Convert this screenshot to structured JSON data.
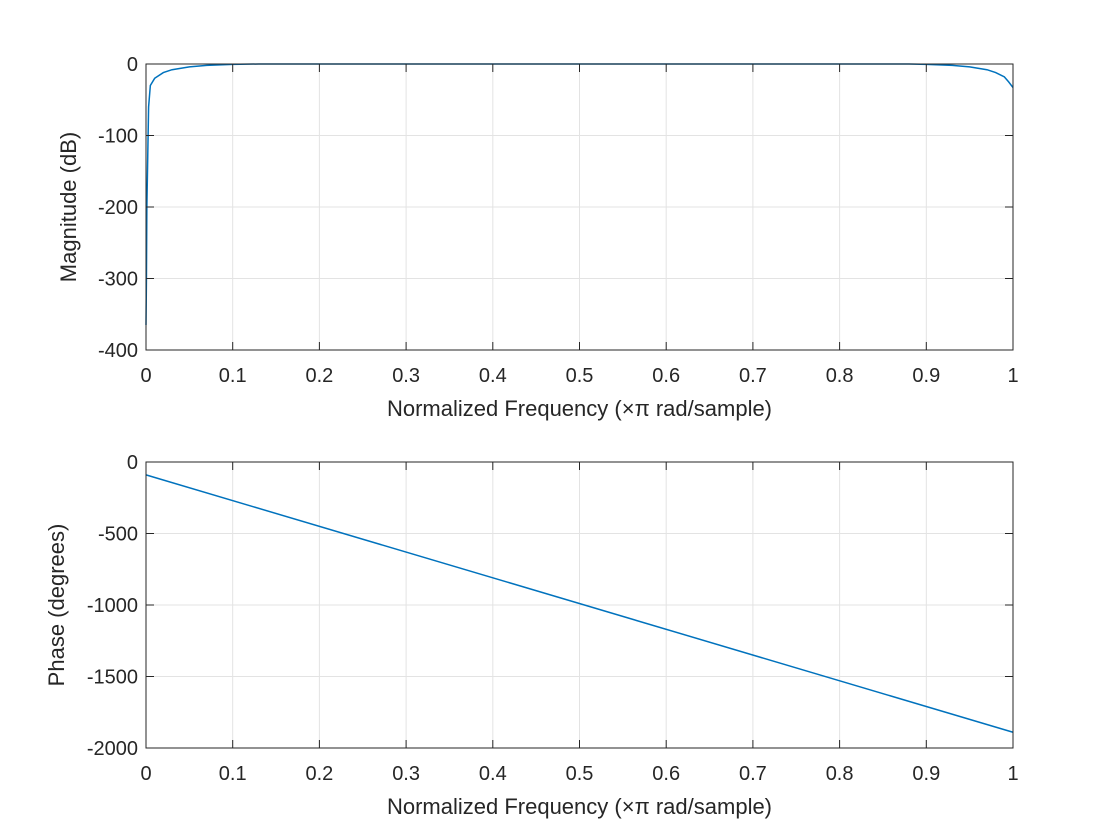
{
  "colors": {
    "series": "#0072bd",
    "axis": "#262626",
    "grid": "#e3e3e3",
    "background": "#ffffff"
  },
  "chart_data": [
    {
      "type": "line",
      "title": "",
      "xlabel": "Normalized Frequency  (×π rad/sample)",
      "ylabel": "Magnitude (dB)",
      "xlim": [
        0,
        1
      ],
      "ylim": [
        -400,
        0
      ],
      "grid": true,
      "xticks": [
        "0",
        "0.1",
        "0.2",
        "0.3",
        "0.4",
        "0.5",
        "0.6",
        "0.7",
        "0.8",
        "0.9",
        "1"
      ],
      "xtick_values": [
        0,
        0.1,
        0.2,
        0.3,
        0.4,
        0.5,
        0.6,
        0.7,
        0.8,
        0.9,
        1
      ],
      "yticks": [
        "0",
        "-100",
        "-200",
        "-300",
        "-400"
      ],
      "ytick_values": [
        0,
        -100,
        -200,
        -300,
        -400
      ],
      "series": [
        {
          "x": [
            0,
            0.0005,
            0.001,
            0.002,
            0.003,
            0.005,
            0.01,
            0.02,
            0.03,
            0.05,
            0.07,
            0.1,
            0.13,
            0.16,
            0.2,
            0.5,
            0.85,
            0.88,
            0.9,
            0.93,
            0.95,
            0.97,
            0.98,
            0.99,
            0.995,
            1
          ],
          "y": [
            -365,
            -300,
            -200,
            -130,
            -60,
            -30,
            -20,
            -12,
            -8,
            -4,
            -2,
            -0.5,
            0,
            0,
            0,
            0,
            0,
            0,
            -0.5,
            -2,
            -4,
            -8,
            -12,
            -18,
            -25,
            -33
          ]
        }
      ]
    },
    {
      "type": "line",
      "title": "",
      "xlabel": "Normalized Frequency  (×π rad/sample)",
      "ylabel": "Phase (degrees)",
      "xlim": [
        0,
        1
      ],
      "ylim": [
        -2000,
        0
      ],
      "grid": true,
      "xticks": [
        "0",
        "0.1",
        "0.2",
        "0.3",
        "0.4",
        "0.5",
        "0.6",
        "0.7",
        "0.8",
        "0.9",
        "1"
      ],
      "xtick_values": [
        0,
        0.1,
        0.2,
        0.3,
        0.4,
        0.5,
        0.6,
        0.7,
        0.8,
        0.9,
        1
      ],
      "yticks": [
        "0",
        "-500",
        "-1000",
        "-1500",
        "-2000"
      ],
      "ytick_values": [
        0,
        -500,
        -1000,
        -1500,
        -2000
      ],
      "series": [
        {
          "x": [
            0,
            1
          ],
          "y": [
            -90,
            -1890
          ]
        }
      ]
    }
  ]
}
